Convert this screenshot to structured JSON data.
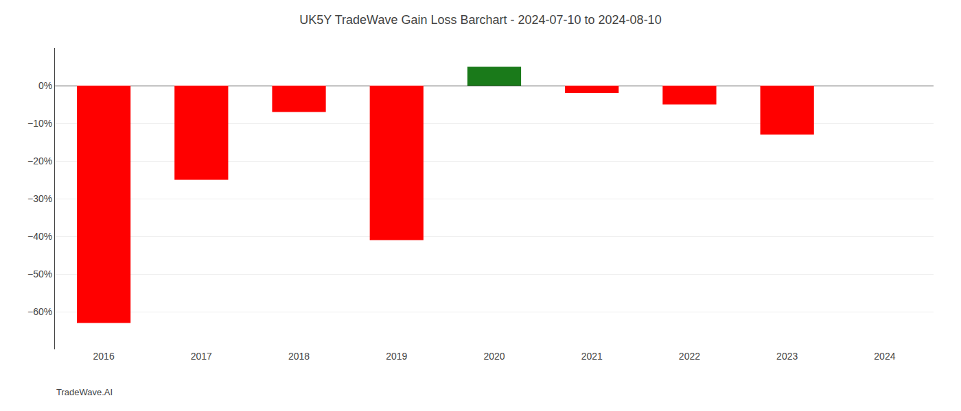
{
  "chart_data": {
    "type": "bar",
    "title": "UK5Y TradeWave Gain Loss Barchart - 2024-07-10 to 2024-08-10",
    "annotations": [
      "TradeWave.AI"
    ],
    "categories": [
      "2016",
      "2017",
      "2018",
      "2019",
      "2020",
      "2021",
      "2022",
      "2023",
      "2024"
    ],
    "values": [
      -63.0,
      -25.0,
      -7.0,
      -41.0,
      5.0,
      -2.0,
      -5.0,
      -13.0,
      0.0
    ],
    "colors": [
      "#ff0000",
      "#ff0000",
      "#ff0000",
      "#ff0000",
      "#1a7a1a",
      "#ff0000",
      "#ff0000",
      "#ff0000",
      "#ff0000"
    ],
    "ylim": [
      -70,
      10
    ],
    "yticks": [
      {
        "value": 0,
        "label": "0%"
      },
      {
        "value": -10,
        "label": "−10%"
      },
      {
        "value": -20,
        "label": "−20%"
      },
      {
        "value": -30,
        "label": "−30%"
      },
      {
        "value": -40,
        "label": "−40%"
      },
      {
        "value": -50,
        "label": "−50%"
      },
      {
        "value": -60,
        "label": "−60%"
      }
    ],
    "grid": true
  }
}
